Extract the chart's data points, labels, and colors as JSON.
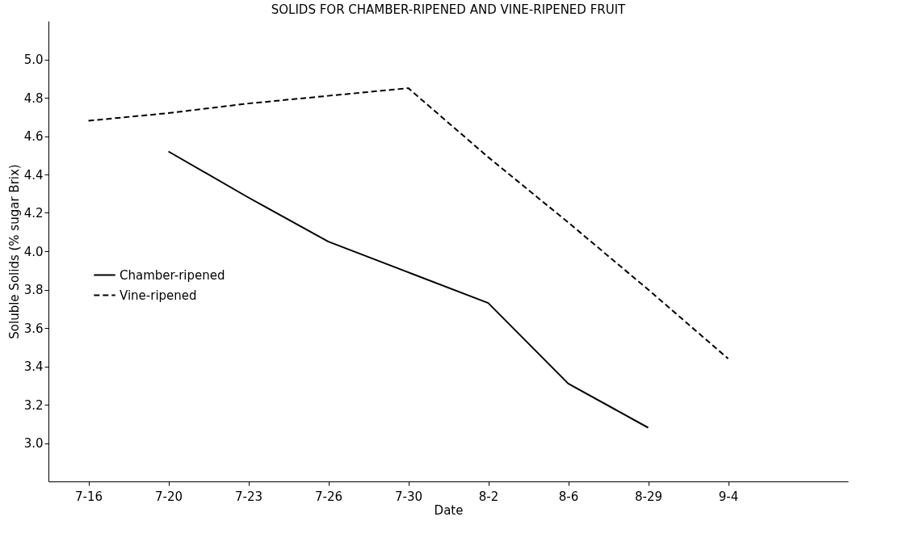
{
  "chart_data": {
    "type": "line",
    "title": "SOLIDS FOR CHAMBER-RIPENED AND VINE-RIPENED FRUIT",
    "xlabel": "Date",
    "ylabel": "Soluble Solids (% sugar Brix)",
    "categories": [
      "7-16",
      "7-20",
      "7-23",
      "7-26",
      "7-30",
      "8-2",
      "8-6",
      "8-29",
      "9-4"
    ],
    "series": [
      {
        "name": "Chamber-ripened",
        "color": "#000000",
        "line_style": "solid",
        "values": [
          null,
          4.52,
          4.28,
          4.05,
          3.89,
          3.73,
          3.31,
          3.08,
          null
        ]
      },
      {
        "name": "Vine-ripened",
        "color": "#000000",
        "line_style": "dashed",
        "values": [
          4.68,
          4.72,
          4.77,
          4.81,
          4.85,
          4.49,
          4.15,
          3.8,
          3.44
        ]
      }
    ],
    "ylim": [
      2.8,
      5.2
    ],
    "yticks": [
      {
        "value": 3,
        "label": "3.0"
      },
      3.2,
      3.4,
      3.6,
      3.8,
      {
        "value": 4,
        "label": "4.0"
      },
      4.2,
      4.4,
      4.6,
      4.8,
      {
        "value": 5,
        "label": "5.0"
      }
    ],
    "grid": false,
    "legend": "left",
    "marker": "none"
  }
}
